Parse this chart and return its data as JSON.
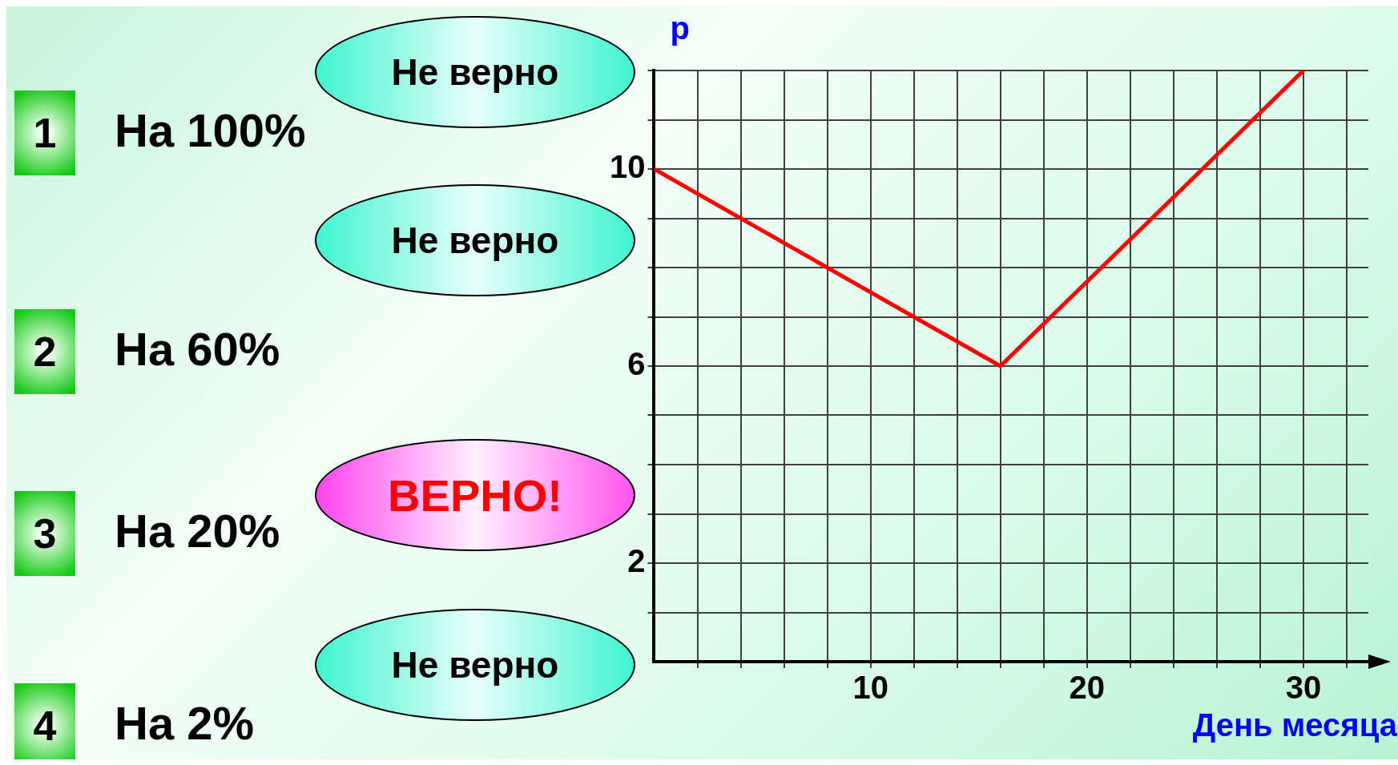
{
  "chart_data": {
    "type": "line",
    "xlabel": "День месяца",
    "ylabel": "р",
    "x": [
      0,
      16,
      30
    ],
    "series": [
      {
        "color": "#ff0000",
        "values": [
          10,
          6,
          12
        ]
      }
    ],
    "xlim": [
      0,
      33
    ],
    "ylim": [
      0,
      12
    ],
    "xticks": [
      {
        "value": 2,
        "label": null
      },
      {
        "value": 4,
        "label": null
      },
      {
        "value": 6,
        "label": null
      },
      {
        "value": 8,
        "label": null
      },
      10,
      {
        "value": 12,
        "label": null
      },
      {
        "value": 14,
        "label": null
      },
      {
        "value": 16,
        "label": null
      },
      {
        "value": 18,
        "label": null
      },
      20,
      {
        "value": 22,
        "label": null
      },
      {
        "value": 24,
        "label": null
      },
      {
        "value": 26,
        "label": null
      },
      {
        "value": 28,
        "label": null
      },
      30,
      {
        "value": 32,
        "label": null
      }
    ],
    "yticks": [
      {
        "value": 1,
        "label": null
      },
      2,
      {
        "value": 3,
        "label": null
      },
      {
        "value": 4,
        "label": null
      },
      {
        "value": 5,
        "label": null
      },
      6,
      {
        "value": 7,
        "label": null
      },
      {
        "value": 8,
        "label": null
      },
      {
        "value": 9,
        "label": null
      },
      10,
      {
        "value": 11,
        "label": null
      },
      {
        "value": 12,
        "label": null
      }
    ],
    "grid": true,
    "legend": false,
    "marker": "none",
    "line_style": "solid",
    "annotations": [
      "1",
      "На 100%",
      "Не верно",
      "2",
      "На 60%",
      "Не верно",
      "3",
      "На 20%",
      "ВЕРНО!",
      "4",
      "На 2%",
      "Не верно"
    ]
  }
}
